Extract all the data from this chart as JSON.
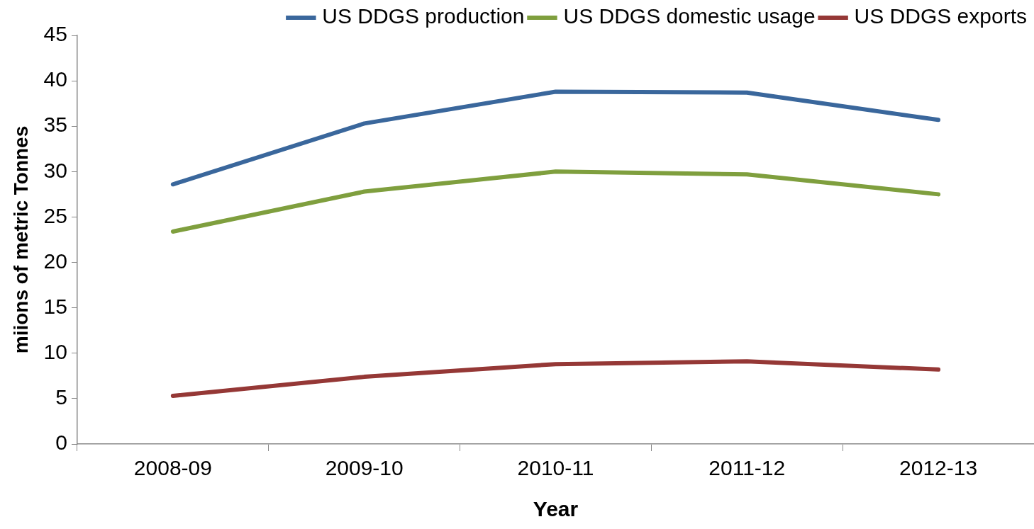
{
  "chart_data": {
    "type": "line",
    "xlabel": "Year",
    "ylabel": "miions of metric Tonnes",
    "categories": [
      "2008-09",
      "2009-10",
      "2010-11",
      "2011-12",
      "2012-13"
    ],
    "series": [
      {
        "name": "US DDGS production",
        "color": "#3a679c",
        "values": [
          28.6,
          35.3,
          38.8,
          38.7,
          35.7
        ]
      },
      {
        "name": "US DDGS domestic usage",
        "color": "#7f9f3e",
        "values": [
          23.4,
          27.8,
          30.0,
          29.7,
          27.5
        ]
      },
      {
        "name": "US DDGS exports",
        "color": "#953836",
        "values": [
          5.3,
          7.4,
          8.8,
          9.1,
          8.2
        ]
      }
    ],
    "ylim": [
      0,
      45
    ],
    "yticks": [
      0,
      5,
      10,
      15,
      20,
      25,
      30,
      35,
      40,
      45
    ],
    "grid": false,
    "legend": "top",
    "marker": "none",
    "line_style": "solid"
  }
}
